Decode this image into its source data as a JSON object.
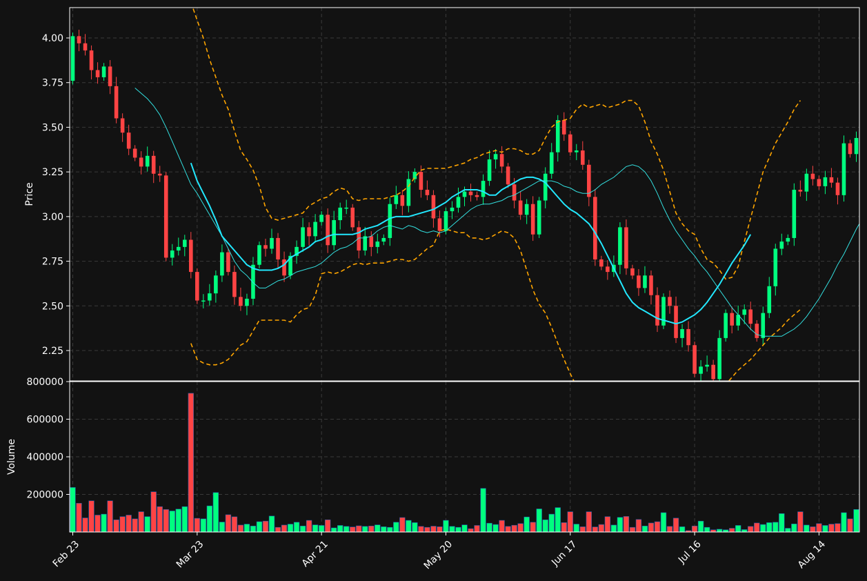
{
  "chart_data": [
    {
      "type": "candlestick",
      "ylabel": "Price",
      "ylim": [
        2.08,
        4.17
      ],
      "yticks": [
        "2.25",
        "2.50",
        "2.75",
        "3.00",
        "3.25",
        "3.50",
        "3.75",
        "4.00"
      ],
      "ytick_values": [
        2.25,
        2.5,
        2.75,
        3.0,
        3.25,
        3.5,
        3.75,
        4.0
      ],
      "x_tick_labels": [
        "Feb 23",
        "Mar 23",
        "Apr 21",
        "May 20",
        "Jun 17",
        "Jul 16",
        "Aug 14"
      ],
      "x_tick_indices": [
        0,
        20,
        40,
        60,
        80,
        100,
        120
      ],
      "grid": true,
      "colors": {
        "up": "#00ff7f",
        "down": "#ff4444",
        "ma_fast": "#33e0e0",
        "ma_slow": "#22e8ff",
        "bands": "#ffa500",
        "background": "#121212",
        "grid": "#3a3a3a"
      },
      "closes": [
        4.01,
        3.97,
        3.93,
        3.82,
        3.78,
        3.84,
        3.73,
        3.55,
        3.47,
        3.38,
        3.33,
        3.28,
        3.34,
        3.24,
        3.23,
        2.77,
        2.81,
        2.83,
        2.87,
        2.69,
        2.53,
        2.53,
        2.57,
        2.67,
        2.8,
        2.69,
        2.55,
        2.5,
        2.54,
        2.73,
        2.84,
        2.82,
        2.88,
        2.76,
        2.67,
        2.78,
        2.83,
        2.94,
        2.89,
        2.97,
        3.01,
        2.84,
        2.98,
        3.05,
        3.05,
        2.94,
        2.81,
        2.89,
        2.83,
        2.86,
        2.88,
        3.07,
        3.12,
        3.06,
        3.21,
        3.25,
        3.15,
        3.12,
        2.99,
        2.92,
        3.03,
        3.05,
        3.11,
        3.14,
        3.12,
        3.11,
        3.2,
        3.32,
        3.35,
        3.28,
        3.18,
        3.09,
        3.01,
        3.07,
        2.9,
        3.09,
        3.24,
        3.36,
        3.54,
        3.46,
        3.36,
        3.37,
        3.29,
        3.11,
        2.76,
        2.72,
        2.69,
        2.73,
        2.94,
        2.71,
        2.67,
        2.6,
        2.67,
        2.56,
        2.39,
        2.55,
        2.5,
        2.32,
        2.37,
        2.28,
        2.12,
        2.16,
        2.17,
        2.09,
        2.32,
        2.46,
        2.39,
        2.45,
        2.48,
        2.4,
        2.32,
        2.46,
        2.61,
        2.82,
        2.86,
        2.88,
        3.15,
        3.14,
        3.24,
        3.21,
        3.17,
        3.22,
        3.19,
        3.12,
        3.41,
        3.35,
        3.44
      ],
      "ma_fast": [
        3.72,
        3.69,
        3.66,
        3.62,
        3.57,
        3.5,
        3.42,
        3.34,
        3.26,
        3.18,
        3.13,
        3.07,
        3.01,
        2.95,
        2.89,
        2.82,
        2.75,
        2.7,
        2.67,
        2.63,
        2.6,
        2.6,
        2.62,
        2.64,
        2.65,
        2.67,
        2.69,
        2.7,
        2.71,
        2.72,
        2.74,
        2.77,
        2.8,
        2.82,
        2.83,
        2.85,
        2.88,
        2.88,
        2.89,
        2.92,
        2.94,
        2.95,
        2.94,
        2.93,
        2.95,
        2.94,
        2.92,
        2.91,
        2.92,
        2.91,
        2.92,
        2.95,
        2.98,
        3.01,
        3.04,
        3.06,
        3.07,
        3.07,
        3.08,
        3.09,
        3.11,
        3.12,
        3.14,
        3.16,
        3.18,
        3.2,
        3.2,
        3.2,
        3.19,
        3.17,
        3.16,
        3.14,
        3.13,
        3.13,
        3.15,
        3.18,
        3.2,
        3.22,
        3.25,
        3.28,
        3.29,
        3.28,
        3.25,
        3.2,
        3.13,
        3.05,
        2.98,
        2.92,
        2.87,
        2.82,
        2.78,
        2.73,
        2.69,
        2.64,
        2.59,
        2.54,
        2.49,
        2.45,
        2.41,
        2.37,
        2.34,
        2.33,
        2.33,
        2.33,
        2.33,
        2.35,
        2.37,
        2.4,
        2.44,
        2.49,
        2.54,
        2.6,
        2.66,
        2.73,
        2.79,
        2.86,
        2.93,
        2.99,
        3.03,
        3.07,
        3.11,
        3.15,
        3.19,
        3.23,
        3.26,
        3.28,
        3.3
      ],
      "ma_slow": [
        3.3,
        3.2,
        3.13,
        3.06,
        2.98,
        2.89,
        2.85,
        2.81,
        2.77,
        2.73,
        2.71,
        2.7,
        2.7,
        2.7,
        2.71,
        2.73,
        2.77,
        2.79,
        2.81,
        2.83,
        2.86,
        2.87,
        2.89,
        2.9,
        2.9,
        2.9,
        2.9,
        2.91,
        2.93,
        2.94,
        2.95,
        2.97,
        2.99,
        3.0,
        3.0,
        3.0,
        3.01,
        3.02,
        3.03,
        3.04,
        3.06,
        3.08,
        3.11,
        3.13,
        3.15,
        3.15,
        3.15,
        3.14,
        3.12,
        3.12,
        3.15,
        3.17,
        3.19,
        3.21,
        3.22,
        3.22,
        3.21,
        3.19,
        3.15,
        3.11,
        3.07,
        3.04,
        3.02,
        2.99,
        2.96,
        2.91,
        2.85,
        2.78,
        2.71,
        2.64,
        2.57,
        2.52,
        2.49,
        2.47,
        2.45,
        2.43,
        2.42,
        2.41,
        2.4,
        2.41,
        2.43,
        2.45,
        2.48,
        2.52,
        2.57,
        2.62,
        2.68,
        2.74,
        2.79,
        2.84,
        2.9
      ],
      "ma_slow_start_index": 19,
      "band_upper": [
        4.2,
        4.1,
        4.0,
        3.88,
        3.78,
        3.68,
        3.6,
        3.48,
        3.37,
        3.32,
        3.26,
        3.17,
        3.05,
        2.99,
        2.98,
        2.99,
        3.0,
        3.01,
        3.02,
        3.06,
        3.08,
        3.1,
        3.11,
        3.14,
        3.16,
        3.15,
        3.1,
        3.09,
        3.1,
        3.1,
        3.1,
        3.1,
        3.11,
        3.12,
        3.14,
        3.17,
        3.22,
        3.26,
        3.27,
        3.27,
        3.27,
        3.27,
        3.28,
        3.29,
        3.3,
        3.32,
        3.33,
        3.35,
        3.36,
        3.37,
        3.36,
        3.38,
        3.38,
        3.37,
        3.35,
        3.35,
        3.37,
        3.44,
        3.5,
        3.53,
        3.54,
        3.55,
        3.6,
        3.63,
        3.61,
        3.62,
        3.63,
        3.61,
        3.62,
        3.63,
        3.65,
        3.65,
        3.62,
        3.53,
        3.42,
        3.35,
        3.26,
        3.14,
        3.02,
        2.96,
        2.92,
        2.9,
        2.82,
        2.76,
        2.74,
        2.7,
        2.65,
        2.66,
        2.72,
        2.86,
        2.99,
        3.12,
        3.25,
        3.33,
        3.41,
        3.47,
        3.53,
        3.6,
        3.65
      ],
      "band_lower": [
        2.29,
        2.2,
        2.18,
        2.17,
        2.17,
        2.18,
        2.2,
        2.24,
        2.28,
        2.3,
        2.36,
        2.42,
        2.42,
        2.42,
        2.42,
        2.42,
        2.41,
        2.45,
        2.48,
        2.49,
        2.56,
        2.68,
        2.69,
        2.68,
        2.69,
        2.71,
        2.73,
        2.74,
        2.73,
        2.74,
        2.74,
        2.74,
        2.75,
        2.76,
        2.76,
        2.75,
        2.76,
        2.79,
        2.82,
        2.84,
        2.92,
        2.93,
        2.92,
        2.91,
        2.91,
        2.88,
        2.88,
        2.87,
        2.88,
        2.9,
        2.92,
        2.91,
        2.88,
        2.81,
        2.7,
        2.59,
        2.51,
        2.46,
        2.38,
        2.29,
        2.2,
        2.12,
        2.05,
        2.02,
        1.99,
        1.97,
        1.98,
        1.98,
        1.94,
        1.9,
        1.89,
        1.87,
        1.87,
        1.9,
        1.9,
        1.91,
        1.91,
        2.02,
        2.03,
        1.98,
        1.93,
        1.89,
        1.88,
        1.92,
        1.98,
        2.03,
        2.06,
        2.1,
        2.14,
        2.17,
        2.2,
        2.24,
        2.28,
        2.32,
        2.35,
        2.38,
        2.42,
        2.45,
        2.48
      ],
      "band_start_index": 19
    },
    {
      "type": "bar",
      "ylabel": "Volume",
      "ylim": [
        0,
        800000
      ],
      "yticks": [
        "200000",
        "400000",
        "600000",
        "800000"
      ],
      "ytick_values": [
        200000,
        400000,
        600000,
        800000
      ],
      "volumes": [
        237000,
        153000,
        75000,
        166000,
        90000,
        95000,
        166000,
        65000,
        82000,
        90000,
        70000,
        108000,
        82000,
        214000,
        135000,
        120000,
        112000,
        122000,
        135000,
        738000,
        73000,
        70000,
        139000,
        210000,
        53000,
        92000,
        81000,
        37000,
        42000,
        32000,
        55000,
        58000,
        85000,
        25000,
        37000,
        42000,
        52000,
        32000,
        62000,
        38000,
        35000,
        65000,
        22000,
        35000,
        30000,
        27000,
        33000,
        30000,
        32000,
        38000,
        28000,
        25000,
        52000,
        77000,
        62000,
        50000,
        30000,
        25000,
        31000,
        28000,
        62000,
        30000,
        25000,
        38000,
        18000,
        35000,
        232000,
        47000,
        40000,
        62000,
        30000,
        36000,
        45000,
        80000,
        52000,
        123000,
        65000,
        95000,
        130000,
        50000,
        108000,
        42000,
        28000,
        108000,
        27000,
        40000,
        82000,
        37000,
        78000,
        83000,
        25000,
        67000,
        32000,
        48000,
        55000,
        103000,
        30000,
        74000,
        28000,
        8000,
        32000,
        58000,
        25000,
        12000,
        15000,
        12000,
        20000,
        35000,
        13000,
        30000,
        48000,
        40000,
        50000,
        52000,
        98000,
        20000,
        43000,
        108000,
        37000,
        28000,
        45000,
        35000,
        42000,
        45000,
        103000,
        70000,
        120000
      ]
    }
  ]
}
